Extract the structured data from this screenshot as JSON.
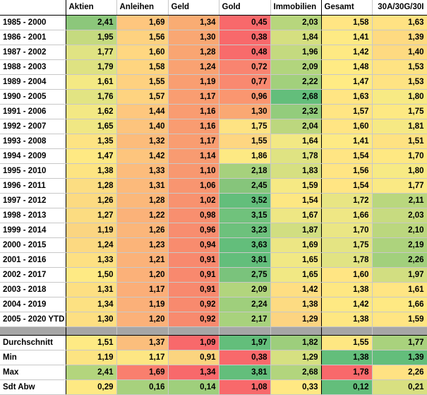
{
  "headers": [
    "",
    "Aktien",
    "Anleihen",
    "Geld",
    "Gold",
    "Immobilien",
    "Gesamt",
    "30A/30G/30I"
  ],
  "rows": [
    {
      "label": "1985 - 2000",
      "values": [
        "2,41",
        "1,69",
        "1,34",
        "0,45",
        "2,03",
        "1,58",
        "1,63"
      ],
      "colors": [
        "#8cc77b",
        "#fec67e",
        "#f9ac73",
        "#f8696b",
        "#b7d67d",
        "#ffe583",
        "#ffe283"
      ]
    },
    {
      "label": "1986 - 2001",
      "values": [
        "1,95",
        "1,56",
        "1,30",
        "0,38",
        "1,84",
        "1,41",
        "1,39"
      ],
      "colors": [
        "#c5da7f",
        "#fed280",
        "#f9a773",
        "#f8696b",
        "#d5df80",
        "#feea84",
        "#feda81"
      ]
    },
    {
      "label": "1987 - 2002",
      "values": [
        "1,77",
        "1,60",
        "1,28",
        "0,48",
        "1,96",
        "1,42",
        "1,40"
      ],
      "colors": [
        "#e0e383",
        "#ffd781",
        "#f9a572",
        "#f86b6b",
        "#c4da7f",
        "#fee983",
        "#feda81"
      ]
    },
    {
      "label": "1988 - 2003",
      "values": [
        "1,79",
        "1,58",
        "1,24",
        "0,72",
        "2,09",
        "1,48",
        "1,53"
      ],
      "colors": [
        "#dee282",
        "#fed580",
        "#f9a272",
        "#f98470",
        "#b2d57d",
        "#ffeb84",
        "#fee383"
      ]
    },
    {
      "label": "1989 - 2004",
      "values": [
        "1,61",
        "1,55",
        "1,19",
        "0,77",
        "2,22",
        "1,47",
        "1,53"
      ],
      "colors": [
        "#f4e984",
        "#fed180",
        "#f99e71",
        "#f98970",
        "#a2d07c",
        "#ffeb84",
        "#fee383"
      ]
    },
    {
      "label": "1990 - 2005",
      "values": [
        "1,76",
        "1,57",
        "1,17",
        "0,96",
        "2,68",
        "1,63",
        "1,80"
      ],
      "colors": [
        "#e2e483",
        "#fed380",
        "#f99d71",
        "#fa9670",
        "#63be7b",
        "#ffe583",
        "#f7ea84"
      ]
    },
    {
      "label": "1991 - 2006",
      "values": [
        "1,62",
        "1,44",
        "1,16",
        "1,30",
        "2,32",
        "1,57",
        "1,75"
      ],
      "colors": [
        "#f3e884",
        "#fec77e",
        "#f99c71",
        "#faa873",
        "#93cc7c",
        "#ffe583",
        "#fde983"
      ]
    },
    {
      "label": "1992 - 2007",
      "values": [
        "1,65",
        "1,40",
        "1,16",
        "1,75",
        "2,04",
        "1,60",
        "1,81"
      ],
      "colors": [
        "#f0e784",
        "#fdc47d",
        "#f99c71",
        "#fee383",
        "#bcd77e",
        "#ffe583",
        "#f6e984"
      ]
    },
    {
      "label": "1993 - 2008",
      "values": [
        "1,35",
        "1,32",
        "1,17",
        "1,55",
        "1,64",
        "1,41",
        "1,51"
      ],
      "colors": [
        "#fde383",
        "#fcbc7b",
        "#f99d71",
        "#fed681",
        "#f2e884",
        "#feea84",
        "#fee282"
      ]
    },
    {
      "label": "1994 - 2009",
      "values": [
        "1,47",
        "1,42",
        "1,14",
        "1,86",
        "1,78",
        "1,54",
        "1,70"
      ],
      "colors": [
        "#fee983",
        "#fdc57d",
        "#f89b71",
        "#fde983",
        "#dfe382",
        "#ffe583",
        "#fee882"
      ]
    },
    {
      "label": "1995 - 2010",
      "values": [
        "1,38",
        "1,33",
        "1,10",
        "2,18",
        "1,83",
        "1,56",
        "1,80"
      ],
      "colors": [
        "#fde482",
        "#fcbc7c",
        "#f89870",
        "#a6d17d",
        "#d6e081",
        "#ffe583",
        "#f7ea84"
      ]
    },
    {
      "label": "1996 - 2011",
      "values": [
        "1,28",
        "1,31",
        "1,06",
        "2,45",
        "1,59",
        "1,54",
        "1,77"
      ],
      "colors": [
        "#fcdd82",
        "#fcba7b",
        "#f89570",
        "#86c57b",
        "#f6e984",
        "#ffe583",
        "#fae984"
      ]
    },
    {
      "label": "1997 - 2012",
      "values": [
        "1,26",
        "1,28",
        "1,02",
        "3,52",
        "1,54",
        "1,72",
        "2,11"
      ],
      "colors": [
        "#fcda81",
        "#fbb87a",
        "#f8926f",
        "#63be7b",
        "#fde782",
        "#e8e583",
        "#b9d77e"
      ]
    },
    {
      "label": "1998 - 2013",
      "values": [
        "1,27",
        "1,22",
        "0,98",
        "3,15",
        "1,67",
        "1,66",
        "2,03"
      ],
      "colors": [
        "#fcdc81",
        "#fbb279",
        "#f88f6f",
        "#70c27c",
        "#eee784",
        "#efe784",
        "#c7db80"
      ]
    },
    {
      "label": "1999 - 2014",
      "values": [
        "1,19",
        "1,26",
        "0,96",
        "3,23",
        "1,87",
        "1,70",
        "2,10"
      ],
      "colors": [
        "#fbd581",
        "#fbb67a",
        "#f88d6f",
        "#6dc17c",
        "#d1de81",
        "#eae684",
        "#bbd77e"
      ]
    },
    {
      "label": "2000 - 2015",
      "values": [
        "1,24",
        "1,23",
        "0,94",
        "3,63",
        "1,69",
        "1,75",
        "2,19"
      ],
      "colors": [
        "#fcd981",
        "#fbb479",
        "#f88c6e",
        "#63be7b",
        "#ece684",
        "#e4e483",
        "#add37d"
      ]
    },
    {
      "label": "2001 - 2016",
      "values": [
        "1,33",
        "1,21",
        "0,91",
        "3,81",
        "1,65",
        "1,78",
        "2,26"
      ],
      "colors": [
        "#fde082",
        "#fbb279",
        "#f8896e",
        "#63be7b",
        "#f1e884",
        "#e1e383",
        "#a2d07c"
      ]
    },
    {
      "label": "2002 - 2017",
      "values": [
        "1,50",
        "1,20",
        "0,91",
        "2,75",
        "1,65",
        "1,60",
        "1,97"
      ],
      "colors": [
        "#feea84",
        "#fbb179",
        "#f8896e",
        "#7ac37c",
        "#f1e884",
        "#ffe583",
        "#d2de81"
      ]
    },
    {
      "label": "2003 - 2018",
      "values": [
        "1,31",
        "1,17",
        "0,91",
        "2,09",
        "1,42",
        "1,38",
        "1,61"
      ],
      "colors": [
        "#fddf82",
        "#fbae78",
        "#f8896e",
        "#b2d57d",
        "#fede82",
        "#fee782",
        "#ffe583"
      ]
    },
    {
      "label": "2004 - 2019",
      "values": [
        "1,34",
        "1,19",
        "0,92",
        "2,24",
        "1,38",
        "1,42",
        "1,66"
      ],
      "colors": [
        "#fde182",
        "#fbb079",
        "#f88a6e",
        "#9fcf7c",
        "#fddb82",
        "#fee983",
        "#fee983"
      ]
    },
    {
      "label": "2005 - 2020 YTD",
      "values": [
        "1,30",
        "1,20",
        "0,92",
        "2,17",
        "1,29",
        "1,38",
        "1,59"
      ],
      "colors": [
        "#fddf82",
        "#fbb179",
        "#f88a6e",
        "#a8d27d",
        "#fcd481",
        "#fee782",
        "#ffe583"
      ]
    }
  ],
  "stats": [
    {
      "label": "Durchschnitt",
      "values": [
        "1,51",
        "1,37",
        "1,09",
        "1,97",
        "1,82",
        "1,55",
        "1,77"
      ],
      "colors": [
        "#feea84",
        "#fbbe7c",
        "#f8696b",
        "#63be7b",
        "#9dce7c",
        "#fee782",
        "#a9d27d"
      ]
    },
    {
      "label": "Min",
      "values": [
        "1,19",
        "1,17",
        "0,91",
        "0,38",
        "1,29",
        "1,38",
        "1,39"
      ],
      "colors": [
        "#fce482",
        "#fde683",
        "#fbd47f",
        "#f8696b",
        "#d6e081",
        "#63be7b",
        "#63be7b"
      ]
    },
    {
      "label": "Max",
      "values": [
        "2,41",
        "1,69",
        "1,34",
        "3,81",
        "2,68",
        "1,78",
        "2,26"
      ],
      "colors": [
        "#b3d57d",
        "#f97f6e",
        "#f8696b",
        "#63be7b",
        "#b2d57d",
        "#f8696b",
        "#ffe283"
      ]
    },
    {
      "label": "Sdt Abw",
      "values": [
        "0,29",
        "0,16",
        "0,14",
        "1,08",
        "0,33",
        "0,12",
        "0,21"
      ],
      "colors": [
        "#fee983",
        "#a7d17d",
        "#9fcf7c",
        "#f8696b",
        "#ffe883",
        "#63be7b",
        "#d8e081"
      ]
    }
  ]
}
